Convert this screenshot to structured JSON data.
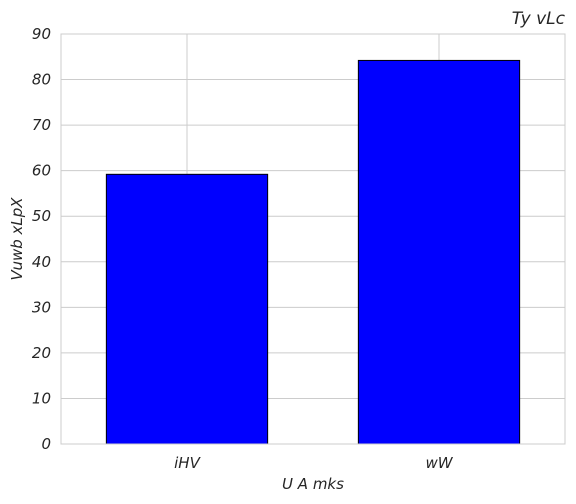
{
  "chart_data": {
    "type": "bar",
    "title": "Ty vLc",
    "xlabel": "U A mks",
    "ylabel": "Vuwb xLpX",
    "categories": [
      "iHV",
      "wW"
    ],
    "values": [
      59.2,
      84.2
    ],
    "ylim": [
      0,
      90
    ],
    "yticks": [
      0,
      10,
      20,
      30,
      40,
      50,
      60,
      70,
      80,
      90
    ],
    "grid": true,
    "bar_color": "#0000ff",
    "edge_color": "#000000",
    "grid_color": "#cccccc"
  }
}
